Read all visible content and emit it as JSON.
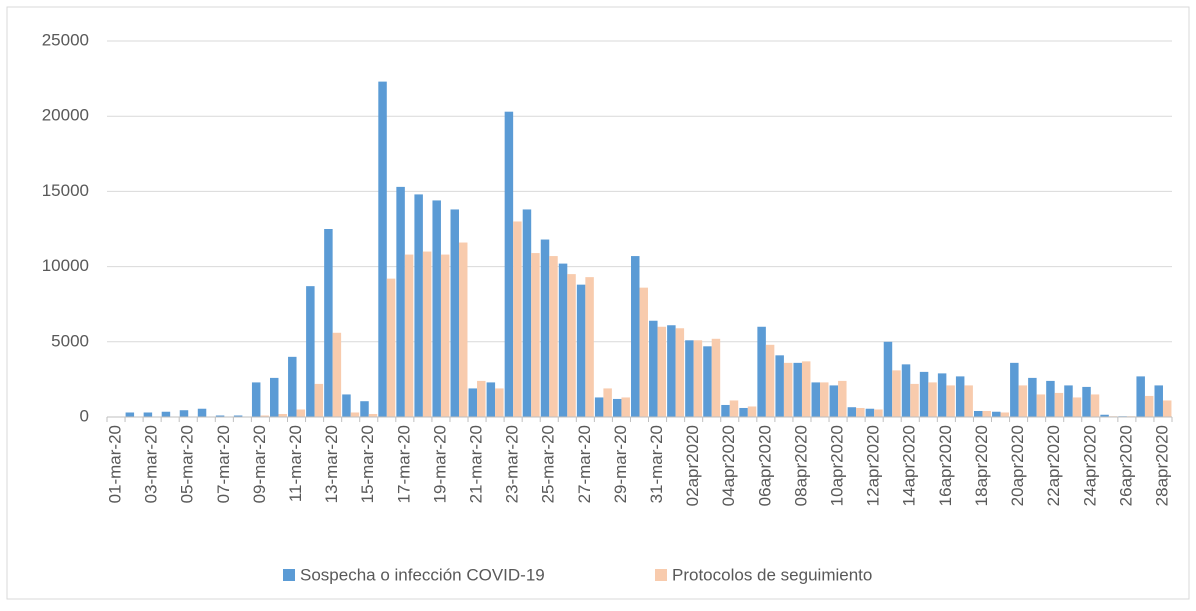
{
  "chart_data": {
    "type": "bar",
    "categories": [
      "01-mar-20",
      null,
      "03-mar-20",
      null,
      "05-mar-20",
      null,
      "07-mar-20",
      null,
      "09-mar-20",
      null,
      "11-mar-20",
      null,
      "13-mar-20",
      null,
      "15-mar-20",
      null,
      "17-mar-20",
      null,
      "19-mar-20",
      null,
      "21-mar-20",
      null,
      "23-mar-20",
      null,
      "25-mar-20",
      null,
      "27-mar-20",
      null,
      "29-mar-20",
      null,
      "31-mar-20",
      null,
      "02apr2020",
      null,
      "04apr2020",
      null,
      "06apr2020",
      null,
      "08apr2020",
      null,
      "10apr2020",
      null,
      "12apr2020",
      null,
      "14apr2020",
      null,
      "16apr2020",
      null,
      "18apr2020",
      null,
      "20apr2020",
      null,
      "22apr2020",
      null,
      "24apr2020",
      null,
      "26apr2020",
      null,
      "28apr2020"
    ],
    "series": [
      {
        "name": "Sospecha o infección COVID-19",
        "color": "#5b9bd5",
        "values": [
          0,
          300,
          300,
          350,
          450,
          550,
          100,
          100,
          2300,
          2600,
          4000,
          8700,
          12500,
          1500,
          1050,
          22300,
          15300,
          14800,
          14400,
          13800,
          1900,
          2300,
          20300,
          13800,
          11800,
          10200,
          8800,
          1300,
          1200,
          10700,
          6400,
          6100,
          5100,
          4700,
          800,
          600,
          6000,
          4100,
          3600,
          2300,
          2100,
          650,
          550,
          5000,
          3500,
          3000,
          2900,
          2700,
          400,
          350,
          3600,
          2600,
          2400,
          2100,
          2000,
          150,
          50,
          2700,
          2100
        ]
      },
      {
        "name": "Protocolos de seguimiento",
        "color": "#f8cbad",
        "values": [
          0,
          0,
          0,
          0,
          0,
          0,
          0,
          0,
          100,
          200,
          500,
          2200,
          5600,
          300,
          200,
          9200,
          10800,
          11000,
          10800,
          11600,
          2400,
          1900,
          13000,
          10900,
          10700,
          9500,
          9300,
          1900,
          1300,
          8600,
          6000,
          5900,
          5100,
          5200,
          1100,
          700,
          4800,
          3600,
          3700,
          2300,
          2400,
          600,
          500,
          3100,
          2200,
          2300,
          2100,
          2100,
          400,
          300,
          2100,
          1500,
          1600,
          1300,
          1500,
          50,
          50,
          1400,
          1100
        ]
      }
    ],
    "ylim": [
      0,
      25000
    ],
    "yticks": [
      0,
      5000,
      10000,
      15000,
      20000,
      25000
    ],
    "grid": true,
    "legend": "bottom"
  }
}
